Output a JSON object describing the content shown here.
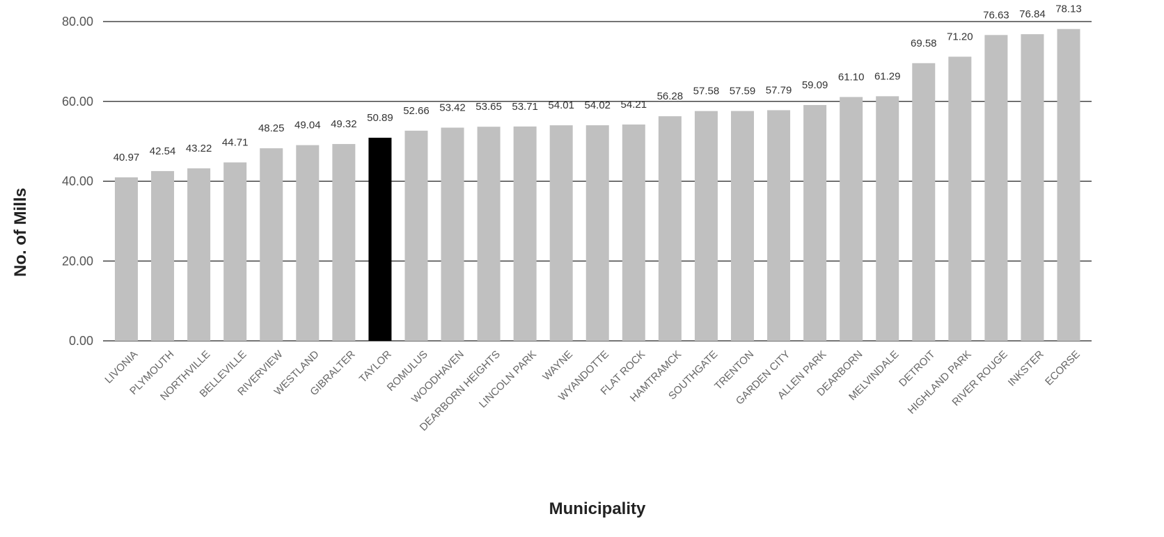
{
  "chart_data": {
    "type": "bar",
    "title": "",
    "xlabel": "Municipality",
    "ylabel": "No. of Mills",
    "ylim": [
      0,
      80
    ],
    "yticks": [
      0,
      20,
      40,
      60,
      80
    ],
    "ytick_labels": [
      "0.00",
      "20.00",
      "40.00",
      "60.00",
      "80.00"
    ],
    "grid": true,
    "legend": "none",
    "categories": [
      "LIVONIA",
      "PLYMOUTH",
      "NORTHVILLE",
      "BELLEVILLE",
      "RIVERVIEW",
      "WESTLAND",
      "GIBRALTER",
      "TAYLOR",
      "ROMULUS",
      "WOODHAVEN",
      "DEARBORN HEIGHTS",
      "LINCOLN PARK",
      "WAYNE",
      "WYANDOTTE",
      "FLAT ROCK",
      "HAMTRAMCK",
      "SOUTHGATE",
      "TRENTON",
      "GARDEN CITY",
      "ALLEN PARK",
      "DEARBORN",
      "MELVINDALE",
      "DETROIT",
      "HIGHLAND PARK",
      "RIVER ROUGE",
      "INKSTER",
      "ECORSE"
    ],
    "values": [
      40.97,
      42.54,
      43.22,
      44.71,
      48.25,
      49.04,
      49.32,
      50.89,
      52.66,
      53.42,
      53.65,
      53.71,
      54.01,
      54.02,
      54.21,
      56.28,
      57.58,
      57.59,
      57.79,
      59.09,
      61.1,
      61.29,
      69.58,
      71.2,
      76.63,
      76.84,
      78.13
    ],
    "value_labels": [
      "40.97",
      "42.54",
      "43.22",
      "44.71",
      "48.25",
      "49.04",
      "49.32",
      "50.89",
      "52.66",
      "53.42",
      "53.65",
      "53.71",
      "54.01",
      "54.02",
      "54.21",
      "56.28",
      "57.58",
      "57.59",
      "57.79",
      "59.09",
      "61.10",
      "61.29",
      "69.58",
      "71.20",
      "76.63",
      "76.84",
      "78.13"
    ],
    "highlight_category": "TAYLOR",
    "colors": {
      "bar": "#c0c0c0",
      "highlight": "#000000",
      "grid": "#222222"
    }
  }
}
